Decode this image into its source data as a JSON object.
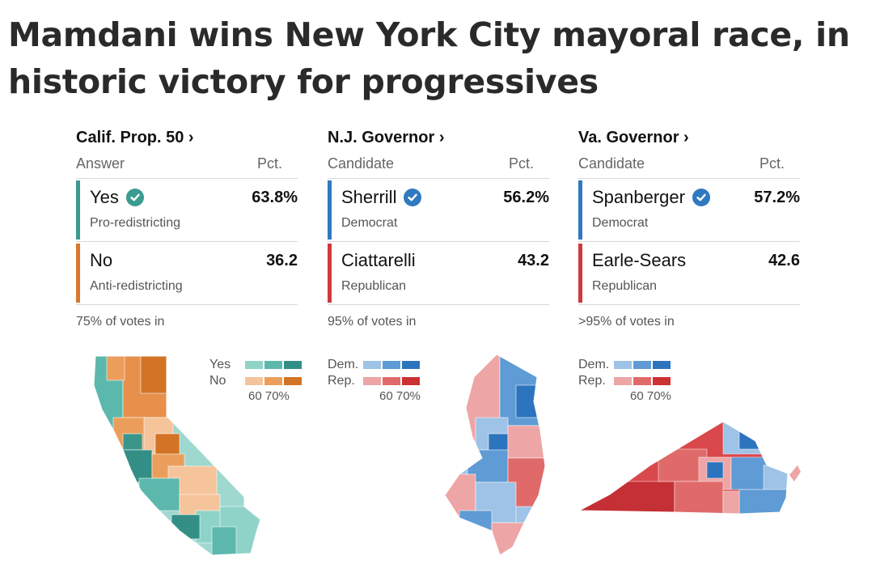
{
  "headline": "Mamdani wins New York City mayoral race, in historic victory for progressives",
  "races": [
    {
      "title": "Calif. Prop. 50 ›",
      "col1": "Answer",
      "col2": "Pct.",
      "rows": [
        {
          "name": "Yes",
          "sub": "Pro-redistricting",
          "pct": "63.8%",
          "winner": true,
          "color": "#3b9b91"
        },
        {
          "name": "No",
          "sub": "Anti-redistricting",
          "pct": "36.2",
          "winner": false,
          "color": "#d9782e"
        }
      ],
      "votes_in": "75% of votes in",
      "legend": {
        "a": "Yes",
        "b": "No",
        "scale": "60 70%",
        "a_colors": [
          "#8fd3c8",
          "#5cb8ac",
          "#338f85"
        ],
        "b_colors": [
          "#f5c49b",
          "#eb9e5c",
          "#d27325"
        ]
      }
    },
    {
      "title": "N.J. Governor ›",
      "col1": "Candidate",
      "col2": "Pct.",
      "rows": [
        {
          "name": "Sherrill",
          "sub": "Democrat",
          "pct": "56.2%",
          "winner": true,
          "color": "#2f79c0"
        },
        {
          "name": "Ciattarelli",
          "sub": "Republican",
          "pct": "43.2",
          "winner": false,
          "color": "#d0393e"
        }
      ],
      "votes_in": "95% of votes in",
      "legend": {
        "a": "Dem.",
        "b": "Rep.",
        "scale": "60 70%",
        "a_colors": [
          "#9fc3e6",
          "#5f9bd4",
          "#2c74bd"
        ],
        "b_colors": [
          "#eea5a5",
          "#e06a6a",
          "#cc3133"
        ]
      }
    },
    {
      "title": "Va. Governor ›",
      "col1": "Candidate",
      "col2": "Pct.",
      "rows": [
        {
          "name": "Spanberger",
          "sub": "Democrat",
          "pct": "57.2%",
          "winner": true,
          "color": "#2f79c0"
        },
        {
          "name": "Earle-Sears",
          "sub": "Republican",
          "pct": "42.6",
          "winner": false,
          "color": "#d0393e"
        }
      ],
      "votes_in": ">95% of votes in",
      "legend": {
        "a": "Dem.",
        "b": "Rep.",
        "scale": "60 70%",
        "a_colors": [
          "#9fc3e6",
          "#5f9bd4",
          "#2c74bd"
        ],
        "b_colors": [
          "#eea5a5",
          "#e06a6a",
          "#cc3133"
        ]
      }
    }
  ],
  "icons": {
    "winner": "checkmark-circle-icon"
  },
  "colors": {
    "check_ca": "#3b9b91",
    "check_dem": "#2f79c0"
  }
}
